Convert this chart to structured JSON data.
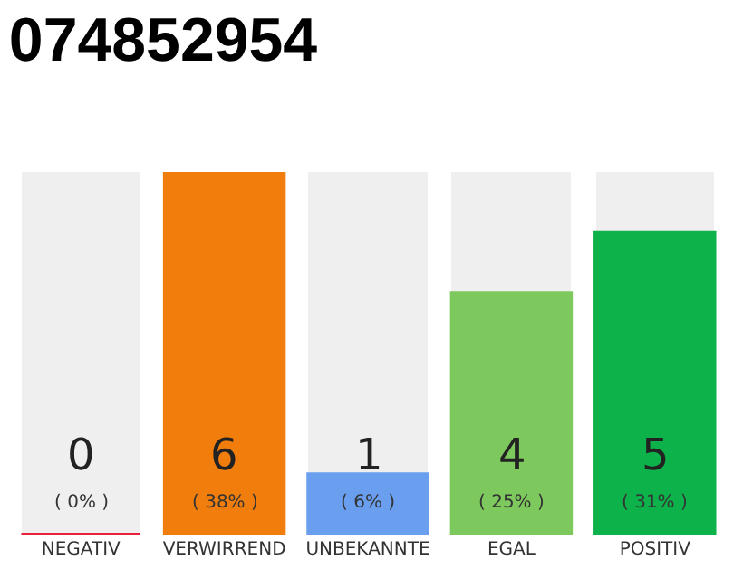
{
  "chart_data": {
    "type": "bar",
    "title": "074852954",
    "categories": [
      "NEGATIV",
      "VERWIRREND",
      "UNBEKANNTE",
      "EGAL",
      "POSITIV"
    ],
    "values": [
      0,
      6,
      1,
      4,
      5
    ],
    "colors": [
      "#e8213a",
      "#f07d0c",
      "#6a9ff0",
      "#7dc95e",
      "#0db34a"
    ],
    "tick_labels": "x",
    "grid": false,
    "value_labels": [
      "0 ( 0% )",
      "6 ( 38% )",
      "1 ( 6% )",
      "4 ( 25% )",
      "5 ( 31% )"
    ]
  }
}
